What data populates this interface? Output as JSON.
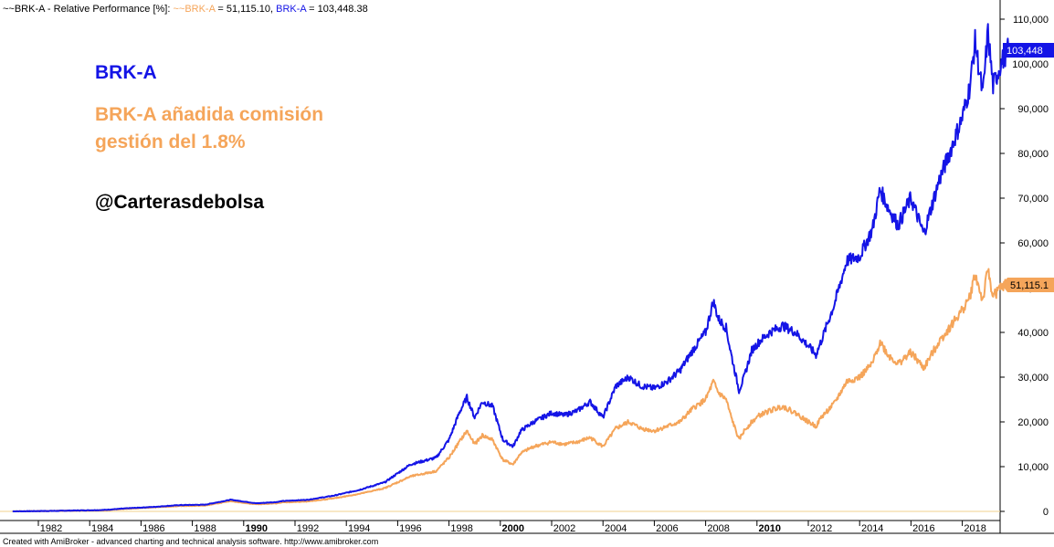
{
  "header": {
    "prefix": "~~BRK-A - Relative Performance [%]: ",
    "series1_label": "~~BRK-A",
    "series1_value": " = 51,115.10, ",
    "series2_label": "BRK-A",
    "series2_value": " = 103,448.38"
  },
  "annotations": {
    "blue_label": "BRK-A",
    "orange_line1": "BRK-A añadida comisión",
    "orange_line2": "gestión del 1.8%",
    "handle": "@Carterasdebolsa"
  },
  "badges": {
    "blue": "103,448",
    "orange": "51,115.1"
  },
  "footer": "Created with AmiBroker - advanced charting and technical analysis software. http://www.amibroker.com",
  "colors": {
    "blue": "#1414e6",
    "orange": "#f5a55a",
    "baseline": "#f0d28c",
    "blue_badge": "#1414e6",
    "orange_badge": "#f5a55a"
  },
  "chart_data": {
    "type": "line",
    "title": "~~BRK-A - Relative Performance [%]",
    "xlabel": "",
    "ylabel": "",
    "xlim": [
      1980.5,
      2019.3
    ],
    "ylim": [
      -2500,
      112000
    ],
    "y_ticks": [
      "0",
      "10,000",
      "20,000",
      "30,000",
      "40,000",
      "50,000",
      "60,000",
      "70,000",
      "80,000",
      "90,000",
      "100,000",
      "110,000"
    ],
    "y_tick_values": [
      0,
      10000,
      20000,
      30000,
      40000,
      50000,
      60000,
      70000,
      80000,
      90000,
      100000,
      110000
    ],
    "x_ticks": [
      "1982",
      "1984",
      "1986",
      "1988",
      "1990",
      "1992",
      "1994",
      "1996",
      "1998",
      "2000",
      "2002",
      "2004",
      "2006",
      "2008",
      "2010",
      "2012",
      "2014",
      "2016",
      "2018"
    ],
    "x_tick_values": [
      1982,
      1984,
      1986,
      1988,
      1990,
      1992,
      1994,
      1996,
      1998,
      2000,
      2002,
      2004,
      2006,
      2008,
      2010,
      2012,
      2014,
      2016,
      2018
    ],
    "x_ticks_bold": [
      "1990",
      "2000",
      "2010"
    ],
    "series": [
      {
        "name": "BRK-A",
        "color": "#1414e6",
        "last_value": 103448.38,
        "x": [
          1980.5,
          1982,
          1984,
          1985,
          1986,
          1987,
          1988,
          1989,
          1989.5,
          1990,
          1990.8,
          1991,
          1992,
          1993,
          1994,
          1995,
          1996,
          1997,
          1997.5,
          1997.9,
          1998.2,
          1998.5,
          1998.8,
          1999.2,
          1999.6,
          2000.0,
          2000.3,
          2000.8,
          2001.5,
          2002.0,
          2002.5,
          2003.0,
          2003.5,
          2004.0,
          2004.5,
          2005.0,
          2005.5,
          2006.0,
          2006.5,
          2007.0,
          2007.5,
          2007.8,
          2008.0,
          2008.3,
          2008.5,
          2008.8,
          2009.0,
          2009.3,
          2009.6,
          2010.0,
          2010.5,
          2011.0,
          2011.5,
          2011.8,
          2012.0,
          2012.5,
          2013.0,
          2013.5,
          2014.0,
          2014.3,
          2014.6,
          2015.0,
          2015.5,
          2016.0,
          2016.3,
          2016.6,
          2017.0,
          2017.5,
          2017.8,
          2018.0,
          2018.3,
          2018.5,
          2018.7,
          2019.0,
          2019.3
        ],
        "y": [
          0,
          100,
          300,
          700,
          1000,
          1400,
          1500,
          2600,
          2200,
          1800,
          2100,
          2300,
          2600,
          3500,
          4800,
          6500,
          10500,
          12000,
          16000,
          22000,
          25500,
          21000,
          24500,
          23500,
          16000,
          14500,
          18000,
          20000,
          22000,
          21500,
          22500,
          24500,
          21000,
          28000,
          30000,
          28000,
          27500,
          29000,
          31500,
          36000,
          40000,
          47000,
          43000,
          41000,
          35000,
          27000,
          30000,
          36000,
          38000,
          40000,
          41500,
          40000,
          37000,
          35000,
          38000,
          46000,
          56000,
          57000,
          63000,
          72000,
          68000,
          64000,
          70000,
          62000,
          68000,
          74000,
          80000,
          88000,
          95000,
          105000,
          93000,
          107000,
          95000,
          100000,
          103448.38
        ]
      },
      {
        "name": "~~BRK-A",
        "color": "#f5a55a",
        "last_value": 51115.1,
        "x": [
          1980.5,
          1982,
          1984,
          1985,
          1986,
          1987,
          1988,
          1989,
          1989.5,
          1990,
          1990.8,
          1991,
          1992,
          1993,
          1994,
          1995,
          1996,
          1997,
          1997.5,
          1997.9,
          1998.2,
          1998.5,
          1998.8,
          1999.2,
          1999.6,
          2000.0,
          2000.3,
          2000.8,
          2001.5,
          2002.0,
          2002.5,
          2003.0,
          2003.5,
          2004.0,
          2004.5,
          2005.0,
          2005.5,
          2006.0,
          2006.5,
          2007.0,
          2007.5,
          2007.8,
          2008.0,
          2008.3,
          2008.5,
          2008.8,
          2009.0,
          2009.3,
          2009.6,
          2010.0,
          2010.5,
          2011.0,
          2011.5,
          2011.8,
          2012.0,
          2012.5,
          2013.0,
          2013.5,
          2014.0,
          2014.3,
          2014.6,
          2015.0,
          2015.5,
          2016.0,
          2016.3,
          2016.6,
          2017.0,
          2017.5,
          2017.8,
          2018.0,
          2018.3,
          2018.5,
          2018.7,
          2019.0,
          2019.3
        ],
        "y": [
          0,
          100,
          250,
          600,
          900,
          1200,
          1300,
          2300,
          1900,
          1600,
          1800,
          2000,
          2200,
          2900,
          3900,
          5200,
          7800,
          9000,
          12000,
          15500,
          18000,
          15000,
          17000,
          16000,
          11500,
          10500,
          13000,
          14500,
          15500,
          15000,
          15500,
          16500,
          14500,
          18500,
          20000,
          18500,
          18000,
          19000,
          20000,
          23000,
          25000,
          29000,
          26500,
          25000,
          21000,
          16000,
          18000,
          20000,
          21500,
          22500,
          23500,
          22000,
          20000,
          19000,
          21000,
          24000,
          29000,
          30000,
          33000,
          38000,
          35000,
          33000,
          35500,
          32000,
          35000,
          38000,
          41000,
          45000,
          48000,
          53000,
          47000,
          54000,
          48000,
          50000,
          51115.1
        ]
      }
    ]
  }
}
